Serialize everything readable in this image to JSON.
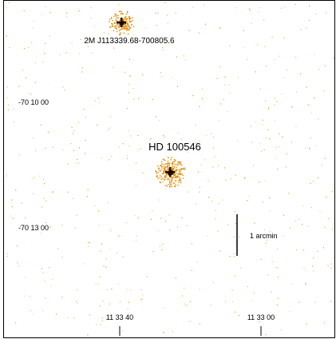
{
  "image": {
    "description_type": "x-ray-image-field",
    "background_color": "#ffffff",
    "photon_color": "#e08a00",
    "core_color": "#1a0d00"
  },
  "sources": [
    {
      "name": "2M J113339.68-700805.6",
      "brightness": "moderate"
    },
    {
      "name": "HD 100546",
      "brightness": "bright"
    }
  ],
  "declination_labels": [
    "-70 10 00",
    "-70 13 00"
  ],
  "right_ascension_labels": [
    "11 33 40",
    "11 33 00"
  ],
  "scale_bar": {
    "label": "1 arcmin"
  }
}
